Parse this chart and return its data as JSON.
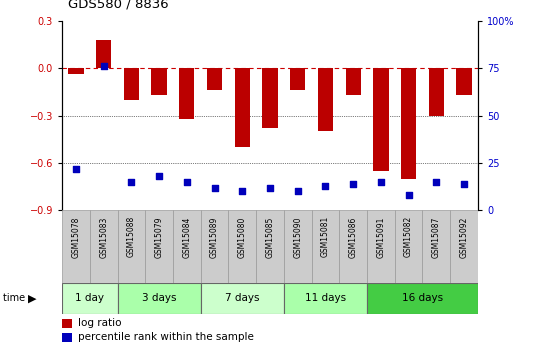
{
  "title": "GDS580 / 8836",
  "samples": [
    "GSM15078",
    "GSM15083",
    "GSM15088",
    "GSM15079",
    "GSM15084",
    "GSM15089",
    "GSM15080",
    "GSM15085",
    "GSM15090",
    "GSM15081",
    "GSM15086",
    "GSM15091",
    "GSM15082",
    "GSM15087",
    "GSM15092"
  ],
  "log_ratio": [
    -0.04,
    0.18,
    -0.2,
    -0.17,
    -0.32,
    -0.14,
    -0.5,
    -0.38,
    -0.14,
    -0.4,
    -0.17,
    -0.65,
    -0.7,
    -0.3,
    -0.17
  ],
  "percentile_rank": [
    22,
    76,
    15,
    18,
    15,
    12,
    10,
    12,
    10,
    13,
    14,
    15,
    8,
    15,
    14
  ],
  "groups": [
    {
      "label": "1 day",
      "start": 0,
      "end": 2,
      "color": "#ccffcc"
    },
    {
      "label": "3 days",
      "start": 2,
      "end": 5,
      "color": "#aaffaa"
    },
    {
      "label": "7 days",
      "start": 5,
      "end": 8,
      "color": "#ccffcc"
    },
    {
      "label": "11 days",
      "start": 8,
      "end": 11,
      "color": "#aaffaa"
    },
    {
      "label": "16 days",
      "start": 11,
      "end": 15,
      "color": "#44cc44"
    }
  ],
  "ylim_left": [
    -0.9,
    0.3
  ],
  "ylim_right": [
    0,
    100
  ],
  "yticks_left": [
    -0.9,
    -0.6,
    -0.3,
    0.0,
    0.3
  ],
  "yticks_right": [
    0,
    25,
    50,
    75,
    100
  ],
  "bar_color": "#bb0000",
  "dot_color": "#0000bb",
  "zero_line_color": "#cc0000",
  "label_color_left": "#cc0000",
  "label_color_right": "#0000cc",
  "sample_box_color": "#cccccc",
  "sample_box_edge": "#999999"
}
